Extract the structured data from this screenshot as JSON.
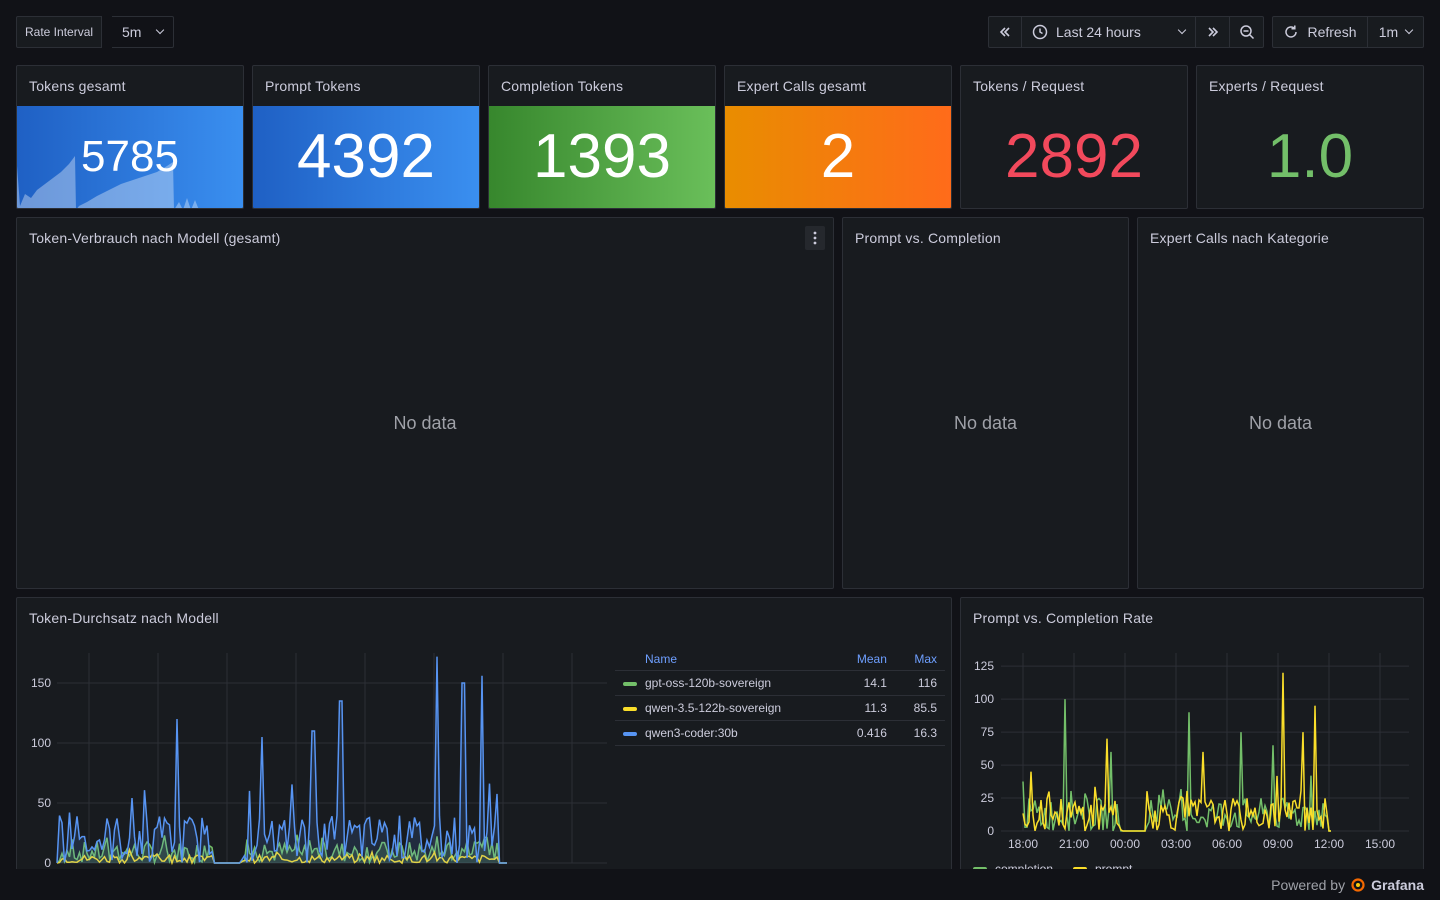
{
  "topbar": {
    "rate_interval_label": "Rate Interval",
    "rate_interval_value": "5m",
    "time_range": "Last 24 hours",
    "refresh_label": "Refresh",
    "refresh_interval": "1m"
  },
  "stats": [
    {
      "title": "Tokens gesamt",
      "value": "5785",
      "color": "#1f60c4"
    },
    {
      "title": "Prompt Tokens",
      "value": "4392",
      "color": "#1f60c4"
    },
    {
      "title": "Completion Tokens",
      "value": "1393",
      "color": "#37872d"
    },
    {
      "title": "Expert Calls gesamt",
      "value": "2",
      "color": "#ff780a"
    },
    {
      "title": "Tokens / Request",
      "value": "2892",
      "color": "#f2495c"
    },
    {
      "title": "Experts / Request",
      "value": "1.0",
      "color": "#73bf69"
    }
  ],
  "panels": {
    "usage_by_model": {
      "title": "Token-Verbrauch nach Modell (gesamt)",
      "empty": "No data"
    },
    "prompt_vs_completion": {
      "title": "Prompt vs. Completion",
      "empty": "No data"
    },
    "expert_calls": {
      "title": "Expert Calls nach Kategorie",
      "empty": "No data"
    },
    "throughput": {
      "title": "Token-Durchsatz nach Modell"
    },
    "rate": {
      "title": "Prompt vs. Completion Rate"
    }
  },
  "legend": {
    "headers": {
      "name": "Name",
      "mean": "Mean",
      "max": "Max"
    },
    "rows": [
      {
        "name": "gpt-oss-120b-sovereign",
        "mean": "14.1",
        "max": "116",
        "color": "#73bf69"
      },
      {
        "name": "qwen-3.5-122b-sovereign",
        "mean": "11.3",
        "max": "85.5",
        "color": "#fade2a"
      },
      {
        "name": "qwen3-coder:30b",
        "mean": "0.416",
        "max": "16.3",
        "color": "#5794f2"
      }
    ]
  },
  "chart_data": [
    {
      "type": "line",
      "title": "Token-Durchsatz nach Modell",
      "ylim": [
        0,
        175
      ],
      "yticks": [
        "150",
        "100",
        "50",
        "0"
      ],
      "series": [
        {
          "name": "gpt-oss-120b-sovereign",
          "color": "#73bf69",
          "mean": 14.1,
          "max": 116
        },
        {
          "name": "qwen-3.5-122b-sovereign",
          "color": "#fade2a",
          "mean": 11.3,
          "max": 85.5
        },
        {
          "name": "qwen3-coder:30b",
          "color": "#5794f2",
          "mean": 0.416,
          "max": 16.3
        }
      ]
    },
    {
      "type": "line",
      "title": "Prompt vs. Completion Rate",
      "ylim": [
        0,
        135
      ],
      "yticks": [
        "125",
        "100",
        "75",
        "50",
        "25",
        "0"
      ],
      "xticks": [
        "18:00",
        "21:00",
        "00:00",
        "03:00",
        "06:00",
        "09:00",
        "12:00",
        "15:00"
      ],
      "series": [
        {
          "name": "completion",
          "color": "#73bf69"
        },
        {
          "name": "prompt",
          "color": "#fade2a"
        }
      ]
    }
  ],
  "footer": {
    "powered_by": "Powered by",
    "brand": "Grafana"
  }
}
